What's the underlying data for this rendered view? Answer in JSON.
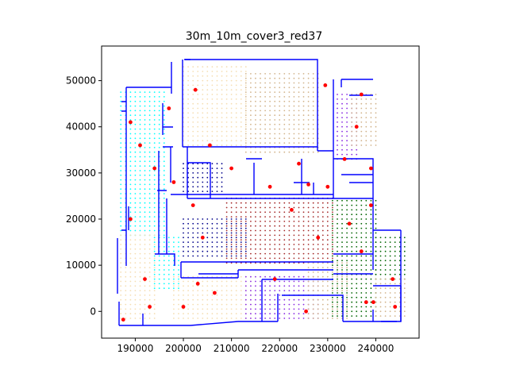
{
  "chart_data": {
    "type": "scatter",
    "title": "30m_10m_cover3_red37",
    "xlabel": "",
    "ylabel": "",
    "xlim": [
      183000,
      249000
    ],
    "ylim": [
      -5800,
      57500
    ],
    "xticks": [
      190000,
      200000,
      210000,
      220000,
      230000,
      240000
    ],
    "xtick_labels": [
      "190000",
      "200000",
      "210000",
      "220000",
      "230000",
      "240000"
    ],
    "yticks": [
      0,
      10000,
      20000,
      30000,
      40000,
      50000
    ],
    "ytick_labels": [
      "0",
      "10000",
      "20000",
      "30000",
      "40000",
      "50000"
    ],
    "grid": false,
    "legend": "none",
    "colors": {
      "walls": "#0000ff",
      "red_points": "#ff0000",
      "cyan_zone": "#00ffff",
      "beige_zone": "#f5deb3",
      "tan_zone": "#d2b48c",
      "brown_zone": "#a52a2a",
      "dark_blue_zone": "#00008b",
      "purple_zone": "#8a2be2",
      "green_zone": "#006400"
    },
    "coverage_zones": [
      {
        "color": "#00ffff",
        "x": [
          187000,
          196000
        ],
        "y": [
          16500,
          47500
        ]
      },
      {
        "color": "#00ffff",
        "x": [
          194000,
          199000
        ],
        "y": [
          5000,
          16500
        ]
      },
      {
        "color": "#f5deb3",
        "x": [
          187000,
          194000
        ],
        "y": [
          -1500,
          16500
        ]
      },
      {
        "color": "#f5deb3",
        "x": [
          200000,
          213000
        ],
        "y": [
          36000,
          53000
        ]
      },
      {
        "color": "#d2b48c",
        "x": [
          213000,
          228000
        ],
        "y": [
          34500,
          52000
        ]
      },
      {
        "color": "#f5deb3",
        "x": [
          198000,
          214000
        ],
        "y": [
          -1500,
          8000
        ]
      },
      {
        "color": "#a52a2a",
        "x": [
          209000,
          231000
        ],
        "y": [
          10500,
          24500
        ]
      },
      {
        "color": "#00008b",
        "x": [
          200000,
          213000
        ],
        "y": [
          12000,
          20500
        ]
      },
      {
        "color": "#00008b",
        "x": [
          200000,
          208000
        ],
        "y": [
          26000,
          32000
        ]
      },
      {
        "color": "#8a2be2",
        "x": [
          213000,
          228000
        ],
        "y": [
          -1500,
          8000
        ]
      },
      {
        "color": "#d2b48c",
        "x": [
          226000,
          234000
        ],
        "y": [
          -1500,
          10500
        ]
      },
      {
        "color": "#8a2be2",
        "x": [
          232000,
          236000
        ],
        "y": [
          33000,
          47000
        ]
      },
      {
        "color": "#d2b48c",
        "x": [
          235000,
          240000
        ],
        "y": [
          36000,
          47500
        ]
      },
      {
        "color": "#006400",
        "x": [
          231000,
          240000
        ],
        "y": [
          -1000,
          24000
        ]
      },
      {
        "color": "#006400",
        "x": [
          240000,
          246000
        ],
        "y": [
          7000,
          16000
        ]
      },
      {
        "color": "#d2b48c",
        "x": [
          240000,
          246000
        ],
        "y": [
          -1000,
          7000
        ]
      }
    ],
    "red_points": [
      {
        "x": 187500,
        "y": -1800
      },
      {
        "x": 189000,
        "y": 41000
      },
      {
        "x": 191000,
        "y": 36000
      },
      {
        "x": 192000,
        "y": 7000
      },
      {
        "x": 193000,
        "y": 1000
      },
      {
        "x": 194000,
        "y": 31000
      },
      {
        "x": 197000,
        "y": 44000
      },
      {
        "x": 198000,
        "y": 28000
      },
      {
        "x": 200000,
        "y": 1000
      },
      {
        "x": 202000,
        "y": 23000
      },
      {
        "x": 202500,
        "y": 48000
      },
      {
        "x": 203000,
        "y": 6000
      },
      {
        "x": 204000,
        "y": 16000
      },
      {
        "x": 205500,
        "y": 36000
      },
      {
        "x": 206500,
        "y": 4000
      },
      {
        "x": 210000,
        "y": 31000
      },
      {
        "x": 218000,
        "y": 27000
      },
      {
        "x": 219000,
        "y": 7000
      },
      {
        "x": 222500,
        "y": 22000
      },
      {
        "x": 224000,
        "y": 32000
      },
      {
        "x": 225500,
        "y": 0
      },
      {
        "x": 228000,
        "y": 16000
      },
      {
        "x": 229500,
        "y": 49000
      },
      {
        "x": 230000,
        "y": 27000
      },
      {
        "x": 233500,
        "y": 33000
      },
      {
        "x": 234500,
        "y": 19000
      },
      {
        "x": 236000,
        "y": 40000
      },
      {
        "x": 237000,
        "y": 47000
      },
      {
        "x": 237000,
        "y": 13000
      },
      {
        "x": 238000,
        "y": 2000
      },
      {
        "x": 239000,
        "y": 31000
      },
      {
        "x": 239000,
        "y": 23000
      },
      {
        "x": 239500,
        "y": 2000
      },
      {
        "x": 243500,
        "y": 7000
      },
      {
        "x": 244000,
        "y": 1000
      },
      {
        "x": 189000,
        "y": 20000
      },
      {
        "x": 226000,
        "y": 27500
      }
    ]
  }
}
